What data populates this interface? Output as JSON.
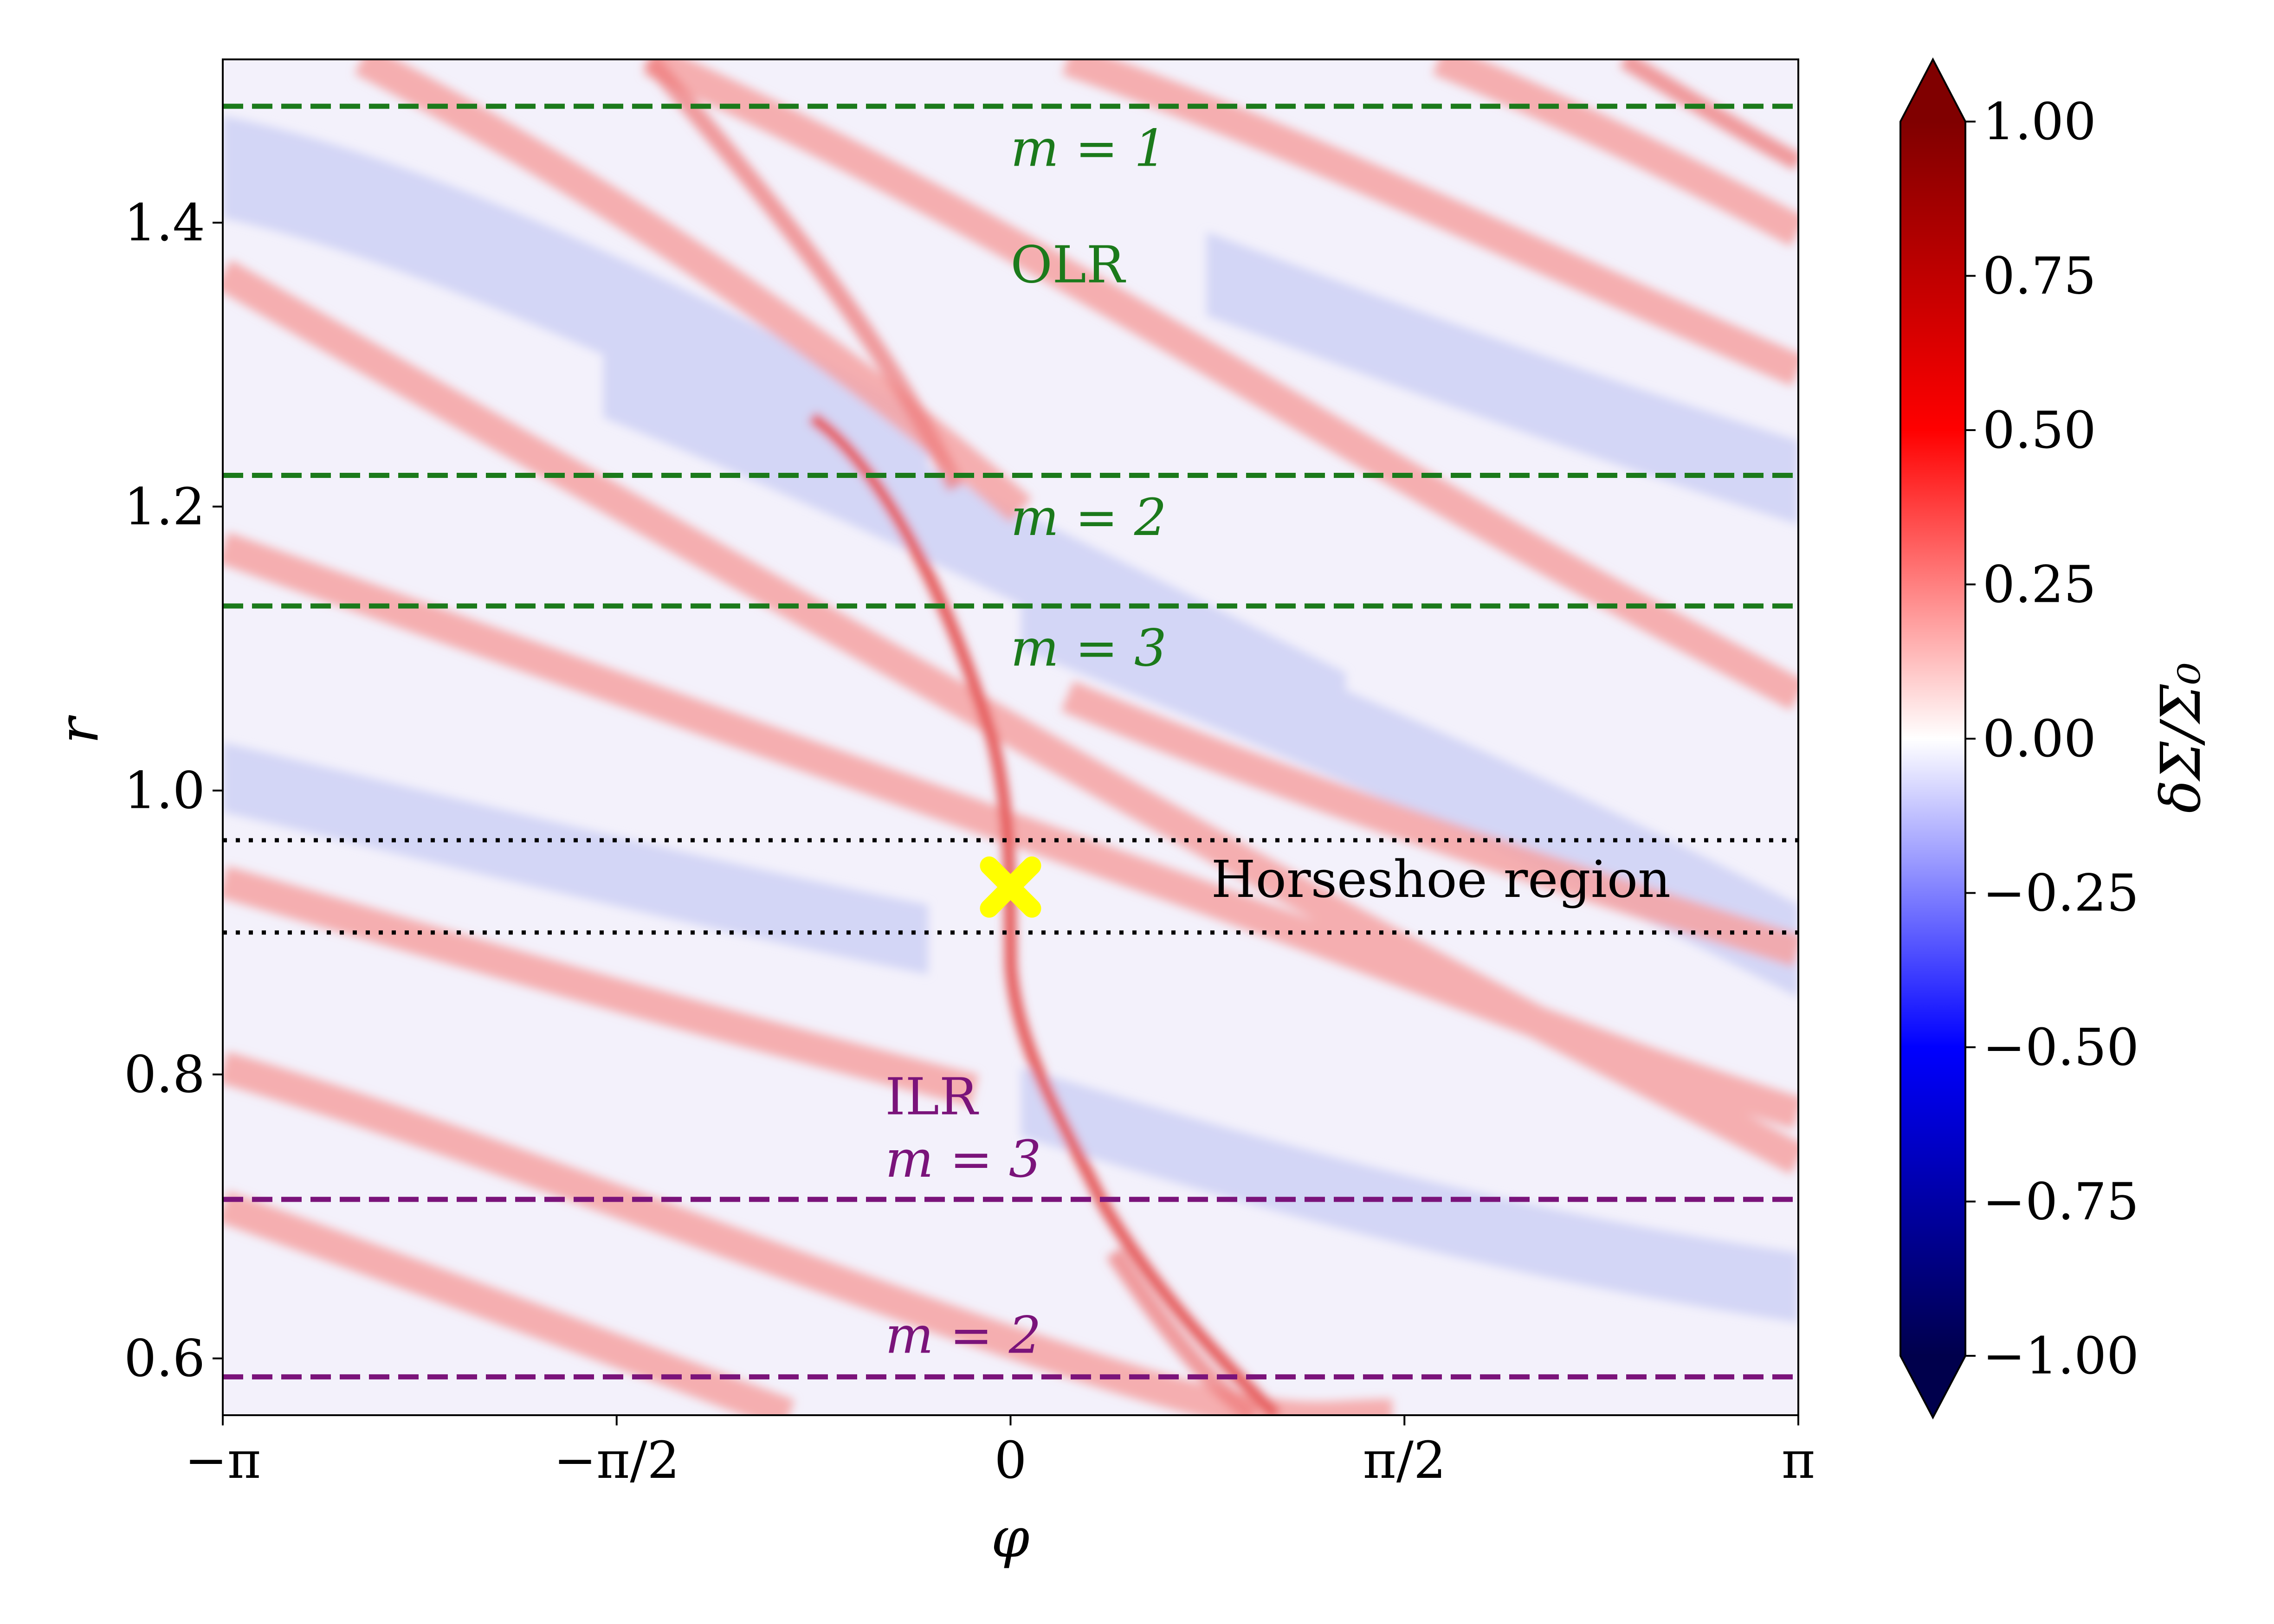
{
  "chart_data": {
    "type": "heatmap",
    "title": "",
    "xlabel": "φ",
    "ylabel": "r",
    "xlim": [
      -3.14159,
      3.14159
    ],
    "ylim": [
      0.56,
      1.515
    ],
    "x_ticks": [
      {
        "value": -3.14159,
        "label": "−π"
      },
      {
        "value": -1.5708,
        "label": "−π/2"
      },
      {
        "value": 0,
        "label": "0"
      },
      {
        "value": 1.5708,
        "label": "π/2"
      },
      {
        "value": 3.14159,
        "label": "π"
      }
    ],
    "y_ticks": [
      {
        "value": 0.6,
        "label": "0.6"
      },
      {
        "value": 0.8,
        "label": "0.8"
      },
      {
        "value": 1.0,
        "label": "1.0"
      },
      {
        "value": 1.2,
        "label": "1.2"
      },
      {
        "value": 1.4,
        "label": "1.4"
      }
    ],
    "colorbar": {
      "label": "δΣ/Σ₀",
      "vmin": -1.0,
      "vmax": 1.0,
      "colormap": "seismic",
      "extend": "both",
      "ticks": [
        {
          "value": 1.0,
          "label": "1.00"
        },
        {
          "value": 0.75,
          "label": "0.75"
        },
        {
          "value": 0.5,
          "label": "0.50"
        },
        {
          "value": 0.25,
          "label": "0.25"
        },
        {
          "value": 0.0,
          "label": "0.00"
        },
        {
          "value": -0.25,
          "label": "−0.25"
        },
        {
          "value": -0.5,
          "label": "−0.50"
        },
        {
          "value": -0.75,
          "label": "−0.75"
        },
        {
          "value": -1.0,
          "label": "−1.00"
        }
      ]
    },
    "resonance_lines": [
      {
        "r": 1.482,
        "group": "OLR",
        "m": 1,
        "color": "#1b7a1b",
        "style": "dashed"
      },
      {
        "r": 1.222,
        "group": "OLR",
        "m": 2,
        "color": "#1b7a1b",
        "style": "dashed"
      },
      {
        "r": 1.13,
        "group": "OLR",
        "m": 3,
        "color": "#1b7a1b",
        "style": "dashed"
      },
      {
        "r": 0.712,
        "group": "ILR",
        "m": 3,
        "color": "#7a137a",
        "style": "dashed"
      },
      {
        "r": 0.587,
        "group": "ILR",
        "m": 2,
        "color": "#7a137a",
        "style": "dashed"
      }
    ],
    "horseshoe_lines": [
      {
        "r": 0.965,
        "color": "#000000",
        "style": "dotted"
      },
      {
        "r": 0.9,
        "color": "#000000",
        "style": "dotted"
      }
    ],
    "planet": {
      "phi": 0,
      "r": 0.932,
      "marker": "X",
      "color": "#ffff00"
    },
    "annotations": [
      {
        "id": "olr-m1",
        "text": "m = 1",
        "phi": 0.0,
        "r": 1.44,
        "color": "#1b7a1b",
        "italic": true
      },
      {
        "id": "olr-title",
        "text": "OLR",
        "phi": 0.0,
        "r": 1.358,
        "color": "#1b7a1b",
        "italic": false
      },
      {
        "id": "olr-m2",
        "text": "m = 2",
        "phi": 0.0,
        "r": 1.18,
        "color": "#1b7a1b",
        "italic": true
      },
      {
        "id": "olr-m3",
        "text": "m = 3",
        "phi": 0.0,
        "r": 1.088,
        "color": "#1b7a1b",
        "italic": true
      },
      {
        "id": "horseshoe",
        "text": "Horseshoe region",
        "phi": 0.8,
        "r": 0.925,
        "color": "#000000",
        "italic": false
      },
      {
        "id": "ilr-title",
        "text": "ILR",
        "phi": -0.5,
        "r": 0.772,
        "color": "#7a137a",
        "italic": false
      },
      {
        "id": "ilr-m3",
        "text": "m = 3",
        "phi": -0.5,
        "r": 0.728,
        "color": "#7a137a",
        "italic": true
      },
      {
        "id": "ilr-m2",
        "text": "m = 2",
        "phi": -0.5,
        "r": 0.604,
        "color": "#7a137a",
        "italic": true
      }
    ]
  }
}
